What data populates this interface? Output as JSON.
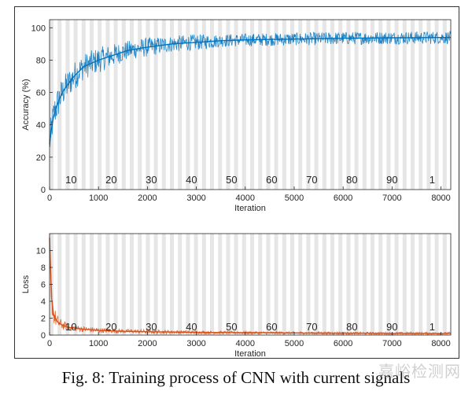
{
  "caption": "Fig. 8: Training process of CNN with current signals",
  "watermark": "嘉峪检测网",
  "colors": {
    "accuracy": "#0072bd",
    "loss": "#d95319",
    "band_light": "#e6e6e6",
    "band_dark": "#d8d8d8"
  },
  "epoch_labels": [
    "10",
    "20",
    "30",
    "40",
    "50",
    "60",
    "70",
    "80",
    "90",
    "1"
  ],
  "chart_data": [
    {
      "type": "line",
      "title": "",
      "xlabel": "Iteration",
      "ylabel": "Accuracy (%)",
      "xlim": [
        0,
        8200
      ],
      "ylim": [
        0,
        105
      ],
      "xticks": [
        "0",
        "1000",
        "2000",
        "3000",
        "4000",
        "5000",
        "6000",
        "7000",
        "8000"
      ],
      "yticks": [
        "0",
        "20",
        "40",
        "60",
        "80",
        "100"
      ],
      "series": [
        {
          "x": [
            0,
            50,
            100,
            200,
            300,
            500,
            700,
            1000,
            1300,
            1600,
            2000,
            2500,
            3000,
            3500,
            4000,
            5000,
            6000,
            7000,
            8200
          ],
          "y": [
            28,
            40,
            48,
            56,
            62,
            70,
            76,
            80,
            83,
            86,
            88,
            90,
            91,
            92,
            92.5,
            93,
            93.5,
            93.8,
            94
          ],
          "spread": [
            10,
            10,
            10,
            10,
            9,
            9,
            8,
            8,
            7,
            6,
            6,
            5,
            5,
            4,
            4,
            4,
            4,
            4,
            4
          ]
        }
      ]
    },
    {
      "type": "line",
      "title": "",
      "xlabel": "Iteration",
      "ylabel": "Loss",
      "xlim": [
        0,
        8200
      ],
      "ylim": [
        0,
        12
      ],
      "xticks": [
        "0",
        "1000",
        "2000",
        "3000",
        "4000",
        "5000",
        "6000",
        "7000",
        "8000"
      ],
      "yticks": [
        "0",
        "2",
        "4",
        "6",
        "8",
        "10"
      ],
      "series": [
        {
          "x": [
            0,
            20,
            40,
            80,
            150,
            250,
            400,
            700,
            1000,
            1500,
            2000,
            3000,
            4000,
            5000,
            6000,
            7000,
            8200
          ],
          "y": [
            11.5,
            7,
            4.5,
            2.5,
            1.6,
            1.2,
            0.9,
            0.7,
            0.55,
            0.45,
            0.4,
            0.32,
            0.28,
            0.25,
            0.22,
            0.2,
            0.2
          ],
          "spread": [
            0.5,
            1.5,
            1.8,
            1.2,
            0.8,
            0.6,
            0.4,
            0.35,
            0.3,
            0.25,
            0.25,
            0.2,
            0.18,
            0.16,
            0.15,
            0.15,
            0.15
          ]
        }
      ]
    }
  ]
}
